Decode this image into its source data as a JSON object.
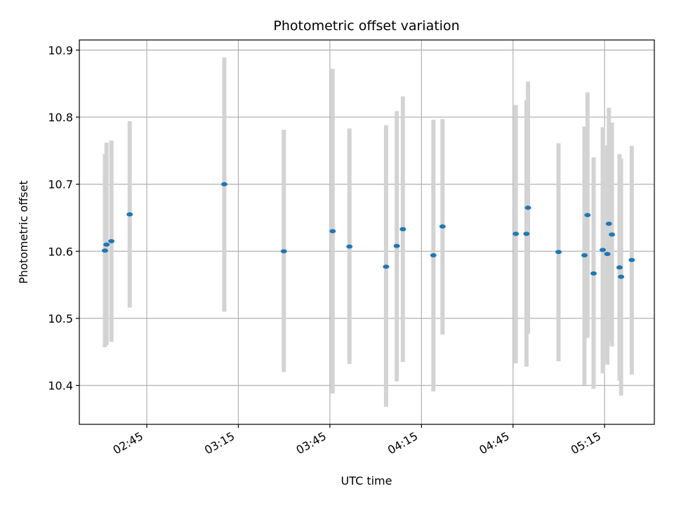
{
  "chart_data": {
    "type": "scatter",
    "title": "Photometric offset variation",
    "xlabel": "UTC time",
    "ylabel": "Photometric offset",
    "x_ticks": [
      "02:45",
      "03:15",
      "03:45",
      "04:15",
      "04:45",
      "05:15"
    ],
    "x_tick_minutes": [
      165,
      195,
      225,
      255,
      285,
      315
    ],
    "xlim": [
      142.9,
      331.3
    ],
    "y_ticks": [
      "10.4",
      "10.5",
      "10.6",
      "10.7",
      "10.8",
      "10.9"
    ],
    "y_tick_values": [
      10.4,
      10.5,
      10.6,
      10.7,
      10.8,
      10.9
    ],
    "ylim": [
      10.342,
      10.915
    ],
    "grid": true,
    "marker_color": "#1f77b4",
    "errorbar_color": "#d3d3d3",
    "points": [
      {
        "t": 151.3,
        "y": 10.601,
        "lo": 10.457,
        "hi": 10.745
      },
      {
        "t": 151.8,
        "y": 10.61,
        "lo": 10.46,
        "hi": 10.762
      },
      {
        "t": 153.4,
        "y": 10.615,
        "lo": 10.465,
        "hi": 10.765
      },
      {
        "t": 159.4,
        "y": 10.655,
        "lo": 10.516,
        "hi": 10.794
      },
      {
        "t": 190.4,
        "y": 10.7,
        "lo": 10.51,
        "hi": 10.889
      },
      {
        "t": 209.9,
        "y": 10.6,
        "lo": 10.42,
        "hi": 10.781
      },
      {
        "t": 225.9,
        "y": 10.63,
        "lo": 10.388,
        "hi": 10.872
      },
      {
        "t": 231.4,
        "y": 10.607,
        "lo": 10.432,
        "hi": 10.783
      },
      {
        "t": 243.4,
        "y": 10.577,
        "lo": 10.368,
        "hi": 10.788
      },
      {
        "t": 246.9,
        "y": 10.608,
        "lo": 10.406,
        "hi": 10.809
      },
      {
        "t": 248.9,
        "y": 10.633,
        "lo": 10.435,
        "hi": 10.831
      },
      {
        "t": 258.9,
        "y": 10.594,
        "lo": 10.391,
        "hi": 10.796
      },
      {
        "t": 261.9,
        "y": 10.637,
        "lo": 10.476,
        "hi": 10.797
      },
      {
        "t": 285.9,
        "y": 10.626,
        "lo": 10.433,
        "hi": 10.818
      },
      {
        "t": 289.4,
        "y": 10.626,
        "lo": 10.428,
        "hi": 10.825
      },
      {
        "t": 289.9,
        "y": 10.665,
        "lo": 10.477,
        "hi": 10.853
      },
      {
        "t": 299.9,
        "y": 10.599,
        "lo": 10.436,
        "hi": 10.761
      },
      {
        "t": 308.4,
        "y": 10.594,
        "lo": 10.401,
        "hi": 10.786
      },
      {
        "t": 309.4,
        "y": 10.654,
        "lo": 10.471,
        "hi": 10.837
      },
      {
        "t": 311.4,
        "y": 10.567,
        "lo": 10.395,
        "hi": 10.74
      },
      {
        "t": 314.4,
        "y": 10.602,
        "lo": 10.418,
        "hi": 10.785
      },
      {
        "t": 315.9,
        "y": 10.596,
        "lo": 10.431,
        "hi": 10.758
      },
      {
        "t": 316.4,
        "y": 10.641,
        "lo": 10.466,
        "hi": 10.814
      },
      {
        "t": 317.4,
        "y": 10.625,
        "lo": 10.458,
        "hi": 10.792
      },
      {
        "t": 319.9,
        "y": 10.576,
        "lo": 10.407,
        "hi": 10.745
      },
      {
        "t": 320.4,
        "y": 10.562,
        "lo": 10.385,
        "hi": 10.738
      },
      {
        "t": 323.9,
        "y": 10.587,
        "lo": 10.416,
        "hi": 10.757
      }
    ]
  }
}
